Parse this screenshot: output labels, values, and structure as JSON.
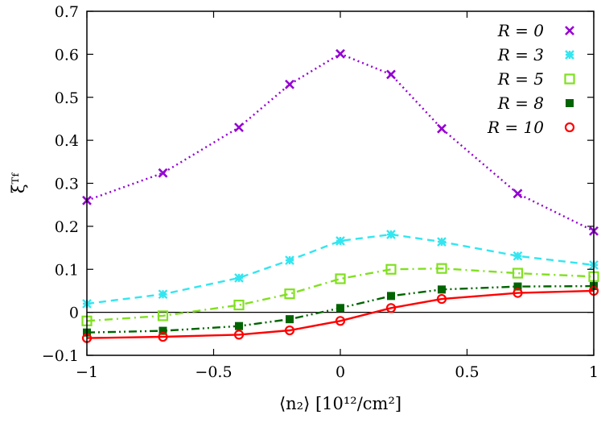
{
  "chart_data": {
    "type": "line",
    "title": "",
    "xlabel": "⟨n₂⟩ [10¹²/cm²]",
    "ylabel": "ξᵀᶠ",
    "xlim": [
      -1,
      1
    ],
    "ylim": [
      -0.1,
      0.7
    ],
    "x_ticks": [
      -1,
      -0.5,
      0,
      0.5,
      1
    ],
    "x_tick_labels": [
      "−1",
      "−0.5",
      "0",
      "0.5",
      "1"
    ],
    "y_ticks": [
      -0.1,
      0,
      0.1,
      0.2,
      0.3,
      0.4,
      0.5,
      0.6,
      0.7
    ],
    "y_tick_labels": [
      "−0.1",
      "0",
      "0.1",
      "0.2",
      "0.3",
      "0.4",
      "0.5",
      "0.6",
      "0.7"
    ],
    "zero_line": true,
    "legend_position": "top-right",
    "x": [
      -1,
      -0.7,
      -0.4,
      -0.2,
      0,
      0.2,
      0.4,
      0.7,
      1
    ],
    "series": [
      {
        "name": "R = 0",
        "values": [
          0.26,
          0.324,
          0.43,
          0.53,
          0.601,
          0.553,
          0.427,
          0.276,
          0.189
        ],
        "color": "#9400d3",
        "marker": "x",
        "dash": "dotted"
      },
      {
        "name": "R = 3",
        "values": [
          0.02,
          0.042,
          0.08,
          0.121,
          0.166,
          0.181,
          0.164,
          0.131,
          0.11
        ],
        "color": "#33e6f0",
        "marker": "star",
        "dash": "dashed"
      },
      {
        "name": "R = 5",
        "values": [
          -0.02,
          -0.008,
          0.017,
          0.043,
          0.078,
          0.1,
          0.102,
          0.091,
          0.083
        ],
        "color": "#80e020",
        "marker": "open-square",
        "dash": "dashdot"
      },
      {
        "name": "R = 8",
        "values": [
          -0.047,
          -0.043,
          -0.032,
          -0.016,
          0.01,
          0.038,
          0.053,
          0.06,
          0.061
        ],
        "color": "#006400",
        "marker": "filled-square",
        "dash": "dashdotdot"
      },
      {
        "name": "R = 10",
        "values": [
          -0.06,
          -0.057,
          -0.052,
          -0.042,
          -0.02,
          0.01,
          0.031,
          0.045,
          0.05
        ],
        "color": "#ff0000",
        "marker": "open-circle",
        "dash": "solid"
      }
    ]
  }
}
